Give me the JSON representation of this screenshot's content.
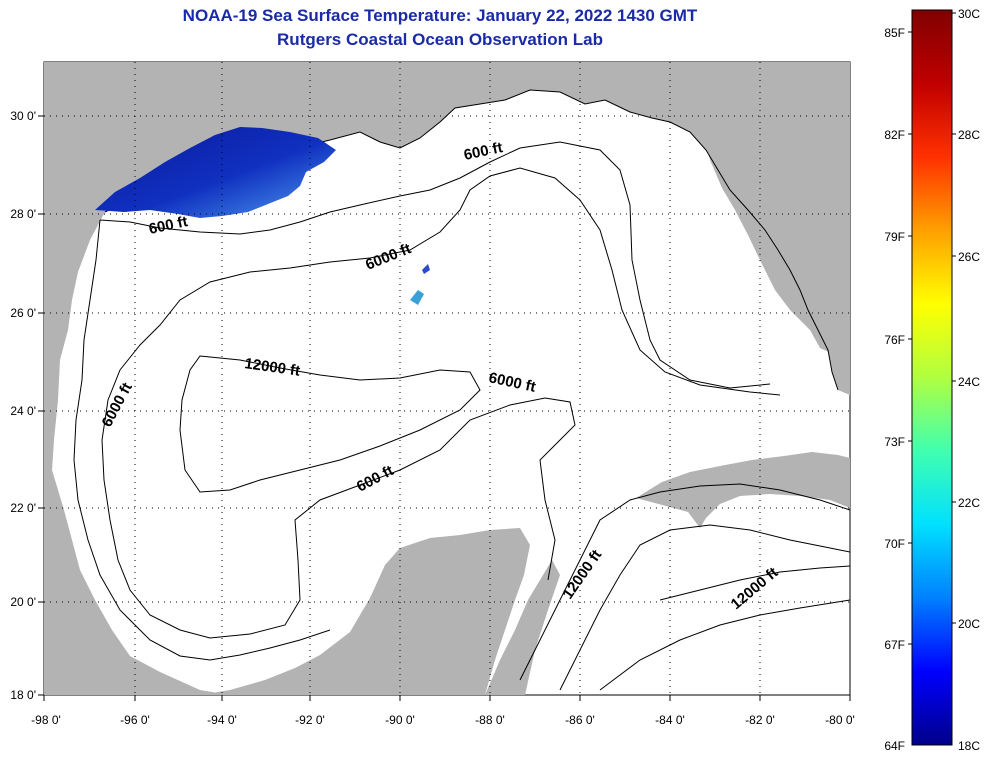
{
  "title": "NOAA-19 Sea Surface Temperature:  January 22, 2022 1430 GMT",
  "subtitle": "Rutgers Coastal Ocean Observation Lab",
  "colorbar": {
    "fahrenheit_labels": [
      "85F",
      "82F",
      "79F",
      "76F",
      "73F",
      "70F",
      "67F",
      "64F"
    ],
    "celsius_labels": [
      "30C",
      "28C",
      "26C",
      "24C",
      "22C",
      "20C",
      "18C"
    ],
    "colors": [
      "#00008a",
      "#0000ff",
      "#0080ff",
      "#00e0ff",
      "#40ffb0",
      "#b0ff40",
      "#ffff00",
      "#ffa000",
      "#ff3000",
      "#c00000",
      "#800000"
    ]
  },
  "axes": {
    "lat_labels": [
      "30 0'",
      "28 0'",
      "26 0'",
      "24 0'",
      "22 0'",
      "20 0'",
      "18 0'"
    ],
    "lon_labels": [
      "-98 0'",
      "-96 0'",
      "-94 0'",
      "-92 0'",
      "-90 0'",
      "-88 0'",
      "-86 0'",
      "-84 0'",
      "-82 0'",
      "-80 0'"
    ]
  },
  "contour_labels": [
    "600 ft",
    "600 ft",
    "6000 ft",
    "12000 ft",
    "6000 ft",
    "6000 ft",
    "600 ft",
    "12000 ft",
    "12000 ft"
  ],
  "colors": {
    "land": "#b3b3b3",
    "title": "#1a2aa8"
  }
}
